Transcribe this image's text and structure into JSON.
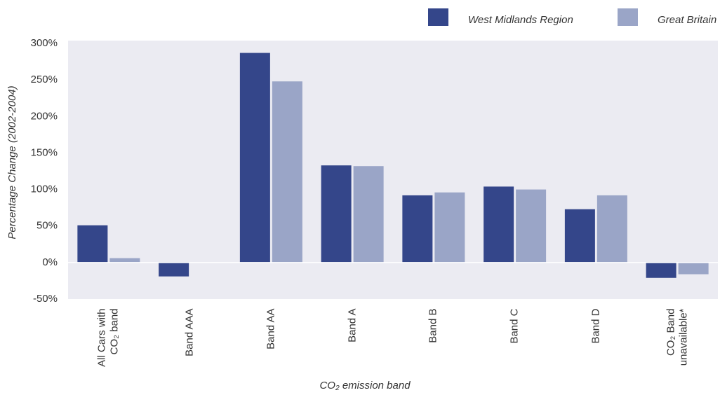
{
  "chart_data": {
    "type": "bar",
    "x_label": "CO₂ emission band",
    "y_label": "Percentage Change (2002-2004)",
    "categories": [
      "All Cars with CO₂ band",
      "Band AAA",
      "Band AA",
      "Band A",
      "Band B",
      "Band C",
      "Band D",
      "CO₂ Band unavailable*"
    ],
    "series": [
      {
        "name": "West Midlands Region",
        "color": "#34468a",
        "values": [
          51,
          -19,
          287,
          133,
          92,
          104,
          73,
          -21
        ]
      },
      {
        "name": "Great Britain",
        "color": "#9aa5c7",
        "values": [
          6,
          0,
          248,
          132,
          96,
          100,
          92,
          -16
        ]
      }
    ],
    "ylim": [
      -50,
      300
    ],
    "yticks": [
      {
        "value": -50,
        "label": "-50%"
      },
      {
        "value": 0,
        "label": "0%"
      },
      {
        "value": 50,
        "label": "50%"
      },
      {
        "value": 100,
        "label": "100%"
      },
      {
        "value": 150,
        "label": "150%"
      },
      {
        "value": 200,
        "label": "200%"
      },
      {
        "value": 250,
        "label": "250%"
      },
      {
        "value": 300,
        "label": "300%"
      }
    ],
    "legend": "top-right"
  }
}
